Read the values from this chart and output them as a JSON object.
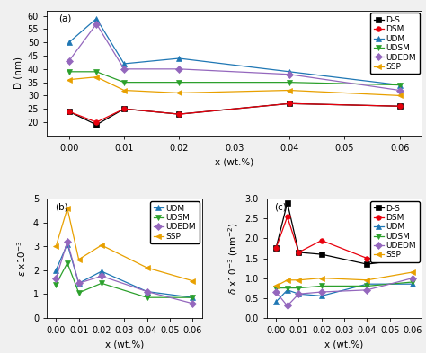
{
  "x_a": [
    0.0,
    0.005,
    0.01,
    0.02,
    0.04,
    0.06
  ],
  "DS_a": [
    24,
    19,
    25,
    23,
    27,
    26
  ],
  "DSM_a": [
    24,
    20,
    25,
    23,
    27,
    26
  ],
  "UDM_a": [
    50,
    59,
    42,
    44,
    39,
    34
  ],
  "UDSM_a": [
    39,
    39,
    35,
    35,
    35,
    34
  ],
  "UDEDM_a": [
    43,
    57,
    40,
    40,
    38,
    32
  ],
  "SSP_a": [
    36,
    37,
    32,
    31,
    32,
    30
  ],
  "x_b": [
    0.0,
    0.005,
    0.01,
    0.02,
    0.04,
    0.06
  ],
  "UDM_b": [
    2.0,
    3.1,
    1.45,
    1.95,
    1.1,
    0.85
  ],
  "UDSM_b": [
    1.4,
    2.3,
    1.05,
    1.45,
    0.85,
    0.85
  ],
  "UDEDM_b": [
    1.65,
    3.2,
    1.45,
    1.75,
    1.1,
    0.6
  ],
  "SSP_b": [
    3.0,
    4.6,
    2.45,
    3.05,
    2.1,
    1.55
  ],
  "x_c": [
    0.0,
    0.005,
    0.01,
    0.02,
    0.04,
    0.06
  ],
  "DS_c": [
    1.75,
    2.9,
    1.65,
    1.6,
    1.35,
    1.5
  ],
  "DSM_c": [
    1.75,
    2.55,
    1.65,
    1.95,
    1.5,
    1.5
  ],
  "UDM_c": [
    0.4,
    0.7,
    0.6,
    0.55,
    0.85,
    0.85
  ],
  "UDSM_c": [
    0.75,
    0.75,
    0.75,
    0.8,
    0.8,
    0.9
  ],
  "UDEDM_c": [
    0.65,
    0.3,
    0.6,
    0.65,
    0.7,
    1.0
  ],
  "SSP_c": [
    0.8,
    0.95,
    0.95,
    1.0,
    0.95,
    1.15
  ],
  "color_DS": "#000000",
  "color_DSM": "#e8000d",
  "color_UDM": "#1f77b4",
  "color_UDSM": "#2ca02c",
  "color_UDEDM": "#9467bd",
  "color_SSP": "#e8a000",
  "marker_DS": "s",
  "marker_DSM": "o",
  "marker_UDM": "^",
  "marker_UDSM": "v",
  "marker_UDEDM": "D",
  "marker_SSP": "<",
  "title_a": "(a)",
  "title_b": "(b)",
  "title_c": "(c)",
  "ylim_a": [
    15,
    62
  ],
  "yticks_a": [
    20,
    25,
    30,
    35,
    40,
    45,
    50,
    55,
    60
  ],
  "ylim_b": [
    0,
    5
  ],
  "yticks_b": [
    0,
    1,
    2,
    3,
    4,
    5
  ],
  "ylim_c": [
    0.0,
    3.0
  ],
  "yticks_c": [
    0.0,
    0.5,
    1.0,
    1.5,
    2.0,
    2.5,
    3.0
  ],
  "xlabel": "x (wt.%)",
  "xticks": [
    0.0,
    0.01,
    0.02,
    0.03,
    0.04,
    0.05,
    0.06
  ],
  "xtick_labels": [
    "0.00",
    "0.01",
    "0.02",
    "0.03",
    "0.04",
    "0.05",
    "0.06"
  ],
  "linewidth": 0.9,
  "markersize": 4,
  "fontsize": 7,
  "label_fontsize": 7.5,
  "legend_fontsize": 6.5
}
